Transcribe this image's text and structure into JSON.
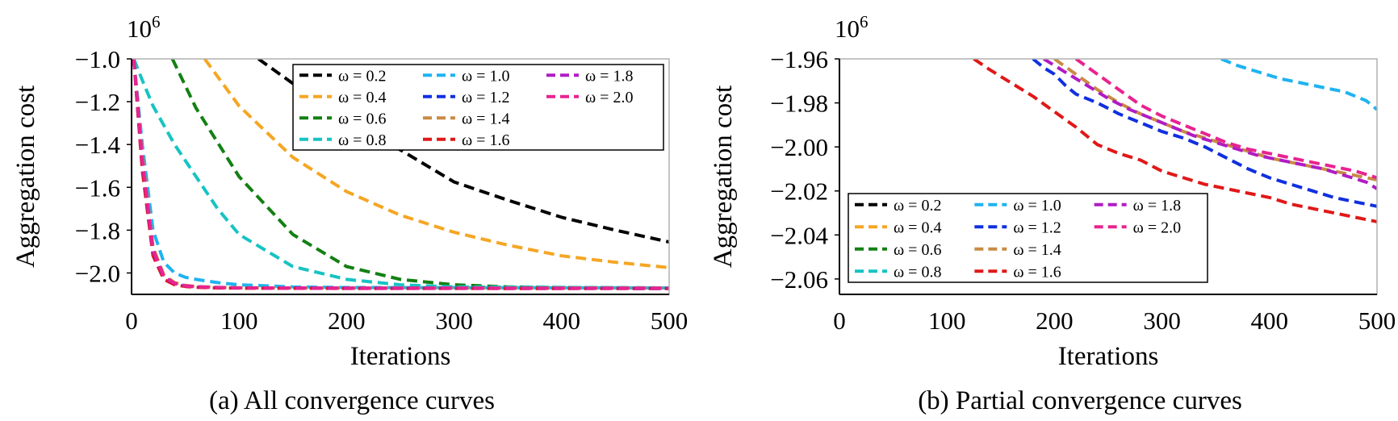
{
  "chart_data": [
    {
      "type": "line",
      "caption": "(a) All convergence curves",
      "xlabel": "Iterations",
      "ylabel": "Aggregation cost",
      "y_multiplier": "10^6",
      "xlim": [
        0,
        500
      ],
      "ylim": [
        -2.1,
        -1.0
      ],
      "x_ticks": [
        0,
        100,
        200,
        300,
        400,
        500
      ],
      "y_ticks": [
        -1.0,
        -1.2,
        -1.4,
        -1.6,
        -1.8,
        -2.0
      ],
      "y_tick_labels": [
        "−1.0",
        "−1.2",
        "−1.4",
        "−1.6",
        "−1.8",
        "−2.0"
      ],
      "grid": false,
      "legend": {
        "placement": "top-right",
        "columns": 3
      },
      "series": [
        {
          "name": "ω = 0.2",
          "color": "#000000",
          "x": [
            118,
            150,
            200,
            250,
            300,
            350,
            400,
            450,
            500
          ],
          "y": [
            -1.0,
            -1.115,
            -1.295,
            -1.425,
            -1.575,
            -1.66,
            -1.74,
            -1.8,
            -1.855
          ]
        },
        {
          "name": "ω = 0.4",
          "color": "#f5a623",
          "x": [
            68,
            100,
            150,
            200,
            250,
            300,
            350,
            400,
            450,
            500
          ],
          "y": [
            -1.0,
            -1.22,
            -1.46,
            -1.62,
            -1.73,
            -1.81,
            -1.87,
            -1.92,
            -1.95,
            -1.975
          ]
        },
        {
          "name": "ω = 0.6",
          "color": "#138013",
          "x": [
            38,
            60,
            100,
            150,
            200,
            250,
            300,
            350,
            400,
            500
          ],
          "y": [
            -1.0,
            -1.23,
            -1.55,
            -1.82,
            -1.97,
            -2.03,
            -2.055,
            -2.065,
            -2.068,
            -2.07
          ]
        },
        {
          "name": "ω = 0.8",
          "color": "#17c3c3",
          "x": [
            2,
            10,
            20,
            40,
            60,
            80,
            100,
            150,
            200,
            250,
            300,
            500
          ],
          "y": [
            -1.0,
            -1.1,
            -1.22,
            -1.4,
            -1.55,
            -1.7,
            -1.82,
            -1.97,
            -2.03,
            -2.055,
            -2.065,
            -2.07
          ]
        },
        {
          "name": "ω = 1.0",
          "color": "#1fb3f0",
          "x": [
            2,
            10,
            20,
            30,
            40,
            50,
            60,
            80,
            100,
            150,
            200,
            500
          ],
          "y": [
            -1.0,
            -1.4,
            -1.8,
            -1.95,
            -2.0,
            -2.02,
            -2.03,
            -2.045,
            -2.055,
            -2.065,
            -2.068,
            -2.07
          ]
        },
        {
          "name": "ω = 1.2",
          "color": "#1030e0",
          "x": [
            2,
            10,
            20,
            30,
            40,
            50,
            60,
            80,
            100,
            200,
            500
          ],
          "y": [
            -1.0,
            -1.5,
            -1.9,
            -2.02,
            -2.05,
            -2.06,
            -2.065,
            -2.068,
            -2.07,
            -2.071,
            -2.072
          ]
        },
        {
          "name": "ω = 1.4",
          "color": "#c98b45",
          "x": [
            2,
            10,
            20,
            30,
            40,
            50,
            60,
            80,
            100,
            200,
            500
          ],
          "y": [
            -1.0,
            -1.45,
            -1.88,
            -2.01,
            -2.045,
            -2.058,
            -2.063,
            -2.067,
            -2.069,
            -2.071,
            -2.071
          ]
        },
        {
          "name": "ω = 1.6",
          "color": "#e01818",
          "x": [
            2,
            10,
            20,
            30,
            40,
            50,
            60,
            80,
            100,
            200,
            500
          ],
          "y": [
            -1.0,
            -1.52,
            -1.92,
            -2.03,
            -2.055,
            -2.063,
            -2.067,
            -2.07,
            -2.071,
            -2.072,
            -2.073
          ]
        },
        {
          "name": "ω = 1.8",
          "color": "#b01cc4",
          "x": [
            2,
            10,
            20,
            30,
            40,
            50,
            60,
            80,
            100,
            200,
            500
          ],
          "y": [
            -1.0,
            -1.48,
            -1.9,
            -2.02,
            -2.05,
            -2.06,
            -2.065,
            -2.068,
            -2.07,
            -2.071,
            -2.072
          ]
        },
        {
          "name": "ω = 2.0",
          "color": "#e8238f",
          "x": [
            2,
            10,
            20,
            30,
            40,
            50,
            60,
            80,
            100,
            200,
            500
          ],
          "y": [
            -1.0,
            -1.47,
            -1.89,
            -2.015,
            -2.048,
            -2.06,
            -2.065,
            -2.068,
            -2.07,
            -2.071,
            -2.071
          ]
        }
      ]
    },
    {
      "type": "line",
      "caption": "(b) Partial convergence curves",
      "xlabel": "Iterations",
      "ylabel": "Aggregation cost",
      "y_multiplier": "10^6",
      "xlim": [
        0,
        500
      ],
      "ylim": [
        -2.067,
        -1.96
      ],
      "x_ticks": [
        0,
        100,
        200,
        300,
        400,
        500
      ],
      "y_ticks": [
        -1.96,
        -1.98,
        -2.0,
        -2.02,
        -2.04,
        -2.06
      ],
      "y_tick_labels": [
        "−1.96",
        "−1.98",
        "−2.00",
        "−2.02",
        "−2.04",
        "−2.06"
      ],
      "grid": false,
      "legend": {
        "placement": "bottom-left",
        "columns": 3
      },
      "series": [
        {
          "name": "ω = 0.2",
          "color": "#000000",
          "x": [],
          "y": []
        },
        {
          "name": "ω = 0.4",
          "color": "#f5a623",
          "x": [],
          "y": []
        },
        {
          "name": "ω = 0.6",
          "color": "#138013",
          "x": [],
          "y": []
        },
        {
          "name": "ω = 0.8",
          "color": "#17c3c3",
          "x": [],
          "y": []
        },
        {
          "name": "ω = 1.0",
          "color": "#1fb3f0",
          "x": [
            355,
            370,
            390,
            410,
            430,
            450,
            470,
            490,
            500
          ],
          "y": [
            -1.96,
            -1.963,
            -1.966,
            -1.969,
            -1.971,
            -1.973,
            -1.975,
            -1.979,
            -1.983
          ]
        },
        {
          "name": "ω = 1.2",
          "color": "#1030e0",
          "x": [
            180,
            190,
            200,
            210,
            220,
            240,
            260,
            280,
            300,
            320,
            340,
            360,
            380,
            400,
            420,
            440,
            460,
            480,
            500
          ],
          "y": [
            -1.96,
            -1.964,
            -1.967,
            -1.972,
            -1.976,
            -1.98,
            -1.985,
            -1.989,
            -1.993,
            -1.996,
            -2.0,
            -2.005,
            -2.01,
            -2.014,
            -2.017,
            -2.02,
            -2.023,
            -2.025,
            -2.027
          ]
        },
        {
          "name": "ω = 1.4",
          "color": "#c98b45",
          "x": [
            200,
            220,
            240,
            260,
            280,
            300,
            320,
            340,
            360,
            380,
            400,
            420,
            440,
            460,
            480,
            500
          ],
          "y": [
            -1.96,
            -1.967,
            -1.974,
            -1.98,
            -1.985,
            -1.989,
            -1.993,
            -1.996,
            -1.999,
            -2.002,
            -2.005,
            -2.007,
            -2.009,
            -2.011,
            -2.013,
            -2.015
          ]
        },
        {
          "name": "ω = 1.6",
          "color": "#e01818",
          "x": [
            125,
            140,
            160,
            180,
            200,
            220,
            240,
            260,
            280,
            300,
            320,
            340,
            360,
            380,
            400,
            420,
            440,
            460,
            480,
            500
          ],
          "y": [
            -1.96,
            -1.965,
            -1.971,
            -1.977,
            -1.984,
            -1.991,
            -1.999,
            -2.003,
            -2.006,
            -2.011,
            -2.014,
            -2.017,
            -2.019,
            -2.021,
            -2.023,
            -2.026,
            -2.028,
            -2.03,
            -2.032,
            -2.034
          ]
        },
        {
          "name": "ω = 1.8",
          "color": "#b01cc4",
          "x": [
            190,
            210,
            230,
            250,
            270,
            290,
            310,
            330,
            350,
            370,
            390,
            410,
            430,
            450,
            470,
            490,
            500
          ],
          "y": [
            -1.96,
            -1.966,
            -1.972,
            -1.978,
            -1.983,
            -1.987,
            -1.991,
            -1.995,
            -1.998,
            -2.001,
            -2.004,
            -2.006,
            -2.008,
            -2.01,
            -2.013,
            -2.016,
            -2.019
          ]
        },
        {
          "name": "ω = 2.0",
          "color": "#e8238f",
          "x": [
            220,
            240,
            260,
            280,
            300,
            320,
            340,
            360,
            380,
            400,
            420,
            440,
            460,
            480,
            500
          ],
          "y": [
            -1.96,
            -1.967,
            -1.974,
            -1.981,
            -1.986,
            -1.99,
            -1.994,
            -1.998,
            -2.001,
            -2.003,
            -2.005,
            -2.007,
            -2.009,
            -2.011,
            -2.014
          ]
        }
      ]
    }
  ]
}
